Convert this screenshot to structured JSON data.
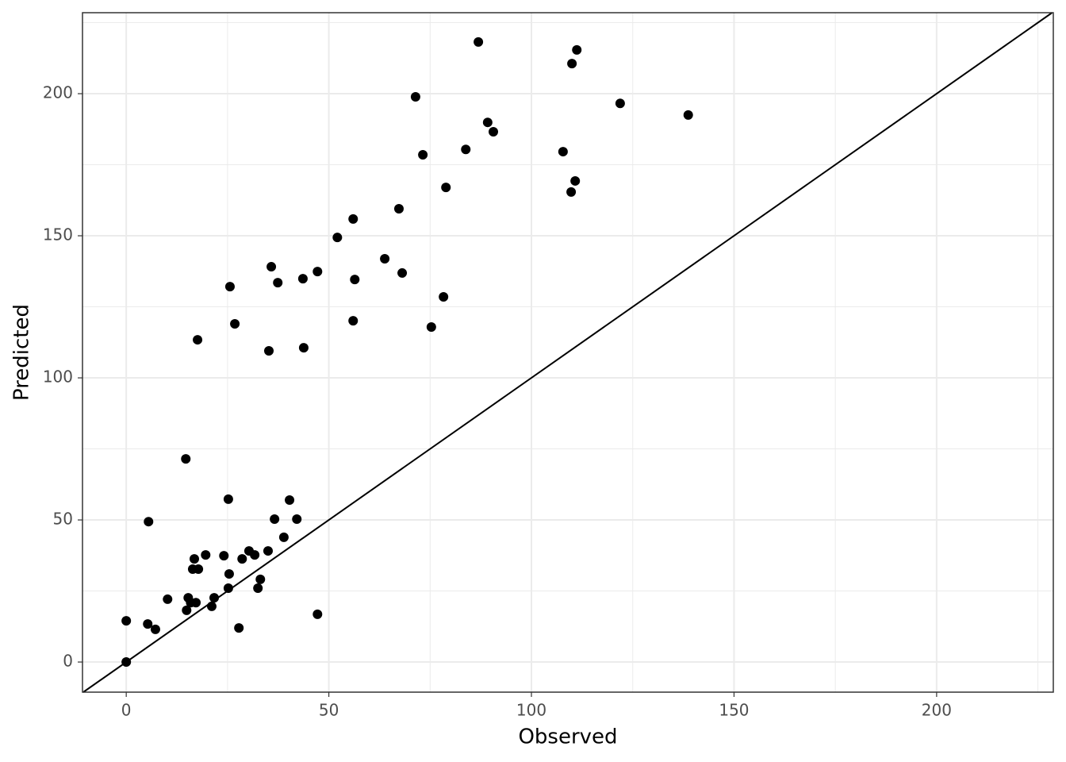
{
  "chart_data": {
    "type": "scatter",
    "x_label": "Observed",
    "y_label": "Predicted",
    "xlim": [
      -10.8,
      228.8
    ],
    "ylim": [
      -10.6,
      228.5
    ],
    "xticks": [
      0,
      50,
      100,
      150,
      200
    ],
    "yticks": [
      0,
      50,
      100,
      150,
      200
    ],
    "x_minor": [
      25,
      75,
      125,
      175,
      225
    ],
    "y_minor": [
      25,
      75,
      125,
      175,
      225
    ],
    "grid": true,
    "color": "#000000",
    "x": [
      86.9,
      111.2,
      110.0,
      71.4,
      121.9,
      138.7,
      89.2,
      90.6,
      107.8,
      83.8,
      73.2,
      110.8,
      109.8,
      78.9,
      67.3,
      56.0,
      52.1,
      63.8,
      35.8,
      47.2,
      68.1,
      43.6,
      56.4,
      37.4,
      25.6,
      78.3,
      56.0,
      26.8,
      75.3,
      17.6,
      43.8,
      35.2,
      14.7,
      25.2,
      40.3,
      5.5,
      36.6,
      42.1,
      38.9,
      35.0,
      30.3,
      31.7,
      19.6,
      24.1,
      16.8,
      28.6,
      16.4,
      17.8,
      25.4,
      33.1,
      25.2,
      32.5,
      10.2,
      15.3,
      21.7,
      15.9,
      17.2,
      21.1,
      14.9,
      47.2,
      0,
      5.3,
      7.2,
      27.8,
      0
    ],
    "values": [
      218.2,
      215.4,
      210.6,
      198.9,
      196.6,
      192.5,
      189.9,
      186.6,
      179.6,
      180.4,
      178.5,
      169.3,
      165.4,
      167.0,
      159.5,
      155.9,
      149.4,
      141.9,
      139.1,
      137.4,
      136.9,
      134.9,
      134.6,
      133.5,
      132.1,
      128.5,
      120.1,
      119.0,
      117.9,
      113.4,
      110.6,
      109.5,
      71.5,
      57.3,
      57.0,
      49.4,
      50.3,
      50.3,
      43.9,
      39.1,
      39.1,
      37.7,
      37.7,
      37.4,
      36.3,
      36.3,
      32.7,
      32.7,
      31.0,
      29.1,
      26.0,
      26.0,
      22.1,
      22.6,
      22.6,
      20.9,
      20.9,
      19.6,
      18.2,
      16.8,
      14.5,
      13.4,
      11.5,
      12.0,
      0
    ]
  }
}
